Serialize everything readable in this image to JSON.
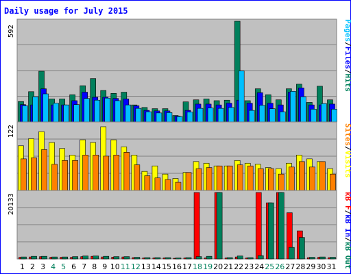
{
  "title": "Daily usage for July 2015",
  "colors": {
    "hits": "#00805c",
    "files": "#0000ff",
    "pages": "#00c0ff",
    "visits": "#ffff00",
    "sites": "#ff8000",
    "kb_f": "#ff0000",
    "kb_in": "#0000ff",
    "kb_out": "#00805c",
    "weekend": "#00805c",
    "weekday": "#000000",
    "panel_bg": "#c0c0c0",
    "border": "#0000ff"
  },
  "chart_data": [
    {
      "type": "bar",
      "panel": "hits-files-pages",
      "categories": [
        "1",
        "2",
        "3",
        "4",
        "5",
        "6",
        "7",
        "8",
        "9",
        "10",
        "11",
        "12",
        "13",
        "14",
        "15",
        "16",
        "17",
        "18",
        "19",
        "20",
        "21",
        "22",
        "23",
        "24",
        "25",
        "26",
        "27",
        "28",
        "29",
        "30",
        "31"
      ],
      "weekend_days": [
        "4",
        "5",
        "11",
        "12",
        "18",
        "19",
        "25",
        "26"
      ],
      "ymax_label": "592",
      "ylim": [
        0,
        592
      ],
      "legend": [
        "Pages",
        "/",
        "Files",
        "/",
        "Hits"
      ],
      "series": [
        {
          "name": "Hits",
          "values": [
            120,
            178,
            298,
            135,
            135,
            160,
            213,
            255,
            185,
            168,
            175,
            100,
            85,
            78,
            78,
            38,
            118,
            130,
            135,
            125,
            128,
            592,
            125,
            195,
            160,
            130,
            195,
            222,
            115,
            210,
            130
          ]
        },
        {
          "name": "Files",
          "values": [
            102,
            100,
            195,
            100,
            100,
            125,
            175,
            145,
            145,
            138,
            135,
            95,
            68,
            65,
            65,
            35,
            68,
            105,
            105,
            100,
            110,
            128,
            110,
            172,
            110,
            100,
            175,
            200,
            100,
            100,
            105
          ]
        },
        {
          "name": "Pages",
          "values": [
            95,
            148,
            165,
            110,
            100,
            102,
            138,
            128,
            140,
            125,
            100,
            80,
            60,
            53,
            55,
            32,
            58,
            80,
            82,
            80,
            85,
            300,
            68,
            98,
            78,
            60,
            180,
            148,
            75,
            108,
            75
          ]
        }
      ]
    },
    {
      "type": "bar",
      "panel": "visits-sites",
      "categories": [
        "1",
        "2",
        "3",
        "4",
        "5",
        "6",
        "7",
        "8",
        "9",
        "10",
        "11",
        "12",
        "13",
        "14",
        "15",
        "16",
        "17",
        "18",
        "19",
        "20",
        "21",
        "22",
        "23",
        "24",
        "25",
        "26",
        "27",
        "28",
        "29",
        "30",
        "31"
      ],
      "ymax_label": "122",
      "ylim": [
        0,
        122
      ],
      "legend": [
        "Sites",
        "/",
        "Visits"
      ],
      "series": [
        {
          "name": "Visits",
          "values": [
            82,
            95,
            108,
            88,
            77,
            65,
            93,
            88,
            117,
            93,
            80,
            65,
            35,
            45,
            30,
            22,
            33,
            53,
            50,
            45,
            45,
            55,
            50,
            48,
            42,
            40,
            50,
            65,
            58,
            53,
            40
          ]
        },
        {
          "name": "Sites",
          "values": [
            58,
            60,
            75,
            48,
            55,
            55,
            65,
            65,
            63,
            65,
            70,
            47,
            27,
            23,
            20,
            15,
            33,
            40,
            42,
            45,
            45,
            47,
            45,
            40,
            40,
            30,
            43,
            53,
            43,
            53,
            30
          ]
        }
      ]
    },
    {
      "type": "bar",
      "panel": "kbf-kbin-kbout",
      "categories": [
        "1",
        "2",
        "3",
        "4",
        "5",
        "6",
        "7",
        "8",
        "9",
        "10",
        "11",
        "12",
        "13",
        "14",
        "15",
        "16",
        "17",
        "18",
        "19",
        "20",
        "21",
        "22",
        "23",
        "24",
        "25",
        "26",
        "27",
        "28",
        "29",
        "30",
        "31"
      ],
      "ymax_label": "20133",
      "ylim": [
        0,
        20133
      ],
      "legend": [
        "kB F",
        "/",
        "kB In",
        "/",
        "kB Out"
      ],
      "series": [
        {
          "name": "kB F",
          "values": [
            500,
            600,
            700,
            500,
            500,
            500,
            700,
            800,
            600,
            550,
            600,
            400,
            300,
            300,
            300,
            200,
            300,
            20133,
            300,
            20133,
            300,
            600,
            300,
            20133,
            17000,
            20133,
            14000,
            8500,
            400,
            500,
            400
          ]
        },
        {
          "name": "kB Out",
          "values": [
            600,
            800,
            800,
            600,
            600,
            700,
            900,
            900,
            800,
            700,
            700,
            500,
            400,
            400,
            400,
            300,
            400,
            700,
            800,
            20133,
            400,
            900,
            400,
            1000,
            17000,
            20133,
            3500,
            6500,
            500,
            600,
            500
          ]
        }
      ]
    }
  ]
}
